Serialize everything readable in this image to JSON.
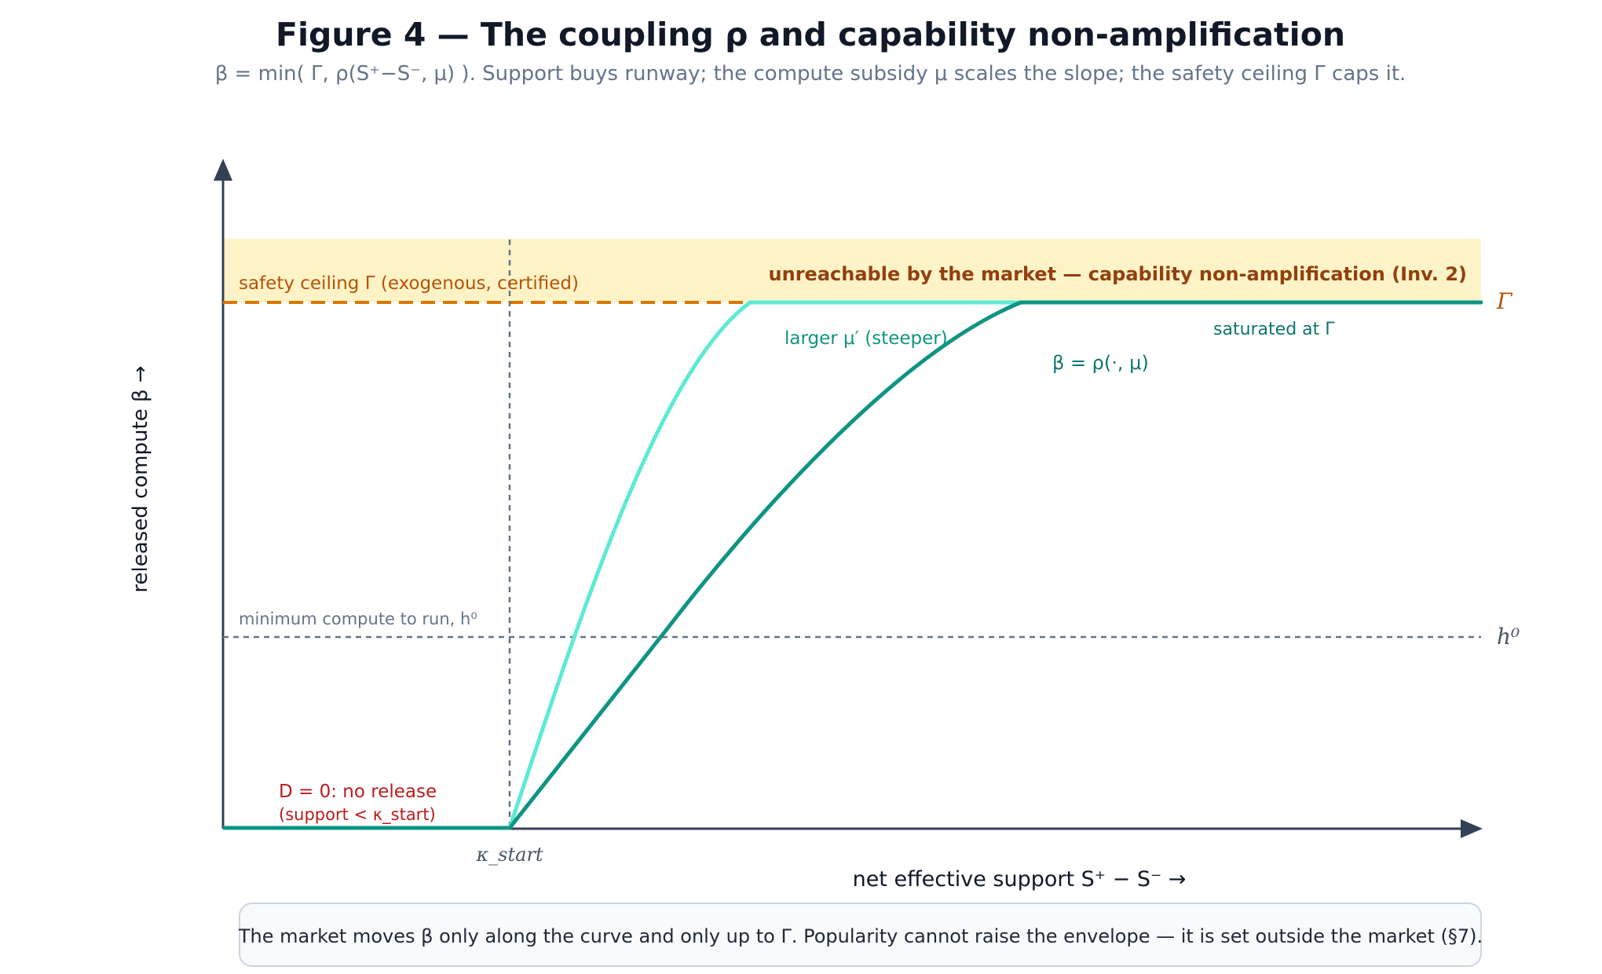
{
  "figure": {
    "title": "Figure 4 — The coupling ρ and capability non-amplification",
    "subtitle": "β = min( Γ, ρ(S⁺−S⁻, μ) ). Support buys runway; the compute subsidy μ scales the slope; the safety ceiling Γ caps it."
  },
  "axes": {
    "y_label": "released compute β →",
    "x_label": "net effective support S⁺ − S⁻ →"
  },
  "ceiling": {
    "label": "safety ceiling Γ (exogenous, certified)",
    "unreachable_label": "unreachable by the market — capability non-amplification (Inv. 2)",
    "symbol": "Γ"
  },
  "minimum": {
    "label": "minimum compute to run, h⁰",
    "symbol": "h⁰"
  },
  "kappa_start": {
    "label": "κ_start"
  },
  "no_release": {
    "line1": "D = 0: no release",
    "line2": "(support < κ_start)"
  },
  "curves": {
    "steeper_label": "larger μ′ (steeper)",
    "base_label": "β = ρ(·, μ)",
    "saturated_label": "saturated at Γ"
  },
  "footnote": "The market moves β only along the curve and only up to Γ. Popularity cannot raise the envelope — it is set outside the market (§7).",
  "colors": {
    "base_curve": "#0f9484",
    "steep_curve": "#5eead4",
    "ceiling": "#d97706",
    "ceiling_band": "#fef3c7",
    "unreachable_text": "#92400e",
    "no_release": "#b91c1c",
    "axis": "#334155",
    "guide": "#64748b"
  }
}
